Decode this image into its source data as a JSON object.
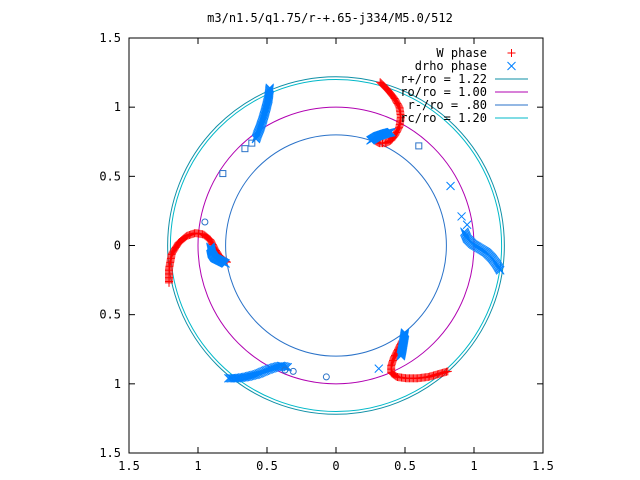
{
  "chart_data": {
    "type": "scatter",
    "title": "m3/n1.5/q1.75/r-+.65-j334/M5.0/512",
    "xlabel": "",
    "ylabel": "",
    "xlim": [
      -1.5,
      1.5
    ],
    "ylim": [
      -1.5,
      1.5
    ],
    "xtick_values": [
      -1.5,
      -1,
      -0.5,
      0,
      0.5,
      1,
      1.5
    ],
    "xtick_labels": [
      "1.5",
      "1",
      "0.5",
      "0",
      "0.5",
      "1",
      "1.5"
    ],
    "ytick_values": [
      1.5,
      1,
      0.5,
      0,
      -0.5,
      -1,
      -1.5
    ],
    "ytick_labels": [
      "1.5",
      "1",
      "0.5",
      "0",
      "0.5",
      "1",
      "1.5"
    ],
    "grid": false,
    "legend_position": "top-right",
    "series": [
      {
        "name": "W phase",
        "marker": "plus",
        "color": "#ff0000",
        "arms": [
          {
            "points": [
              [
                0.32,
                1.18
              ],
              [
                0.37,
                1.13
              ],
              [
                0.42,
                1.07
              ],
              [
                0.46,
                1.0
              ],
              [
                0.47,
                0.93
              ],
              [
                0.46,
                0.86
              ],
              [
                0.43,
                0.8
              ],
              [
                0.4,
                0.76
              ],
              [
                0.36,
                0.74
              ],
              [
                0.31,
                0.74
              ],
              [
                0.28,
                0.76
              ]
            ],
            "count": 60
          },
          {
            "points": [
              [
                -1.21,
                -0.27
              ],
              [
                -1.21,
                -0.17
              ],
              [
                -1.19,
                -0.06
              ],
              [
                -1.14,
                0.02
              ],
              [
                -1.08,
                0.07
              ],
              [
                -1.02,
                0.09
              ],
              [
                -0.96,
                0.08
              ],
              [
                -0.91,
                0.04
              ],
              [
                -0.88,
                -0.02
              ],
              [
                -0.85,
                -0.07
              ],
              [
                -0.82,
                -0.1
              ],
              [
                -0.79,
                -0.12
              ]
            ],
            "count": 80
          },
          {
            "points": [
              [
                0.81,
                -0.91
              ],
              [
                0.74,
                -0.93
              ],
              [
                0.67,
                -0.95
              ],
              [
                0.59,
                -0.96
              ],
              [
                0.51,
                -0.96
              ],
              [
                0.44,
                -0.95
              ],
              [
                0.4,
                -0.92
              ],
              [
                0.4,
                -0.87
              ],
              [
                0.42,
                -0.81
              ],
              [
                0.45,
                -0.75
              ],
              [
                0.48,
                -0.69
              ]
            ],
            "count": 70
          }
        ]
      },
      {
        "name": "drho phase",
        "marker": "cross",
        "color": "#0080ff",
        "arms": [
          {
            "points": [
              [
                -0.48,
                1.14
              ],
              [
                -0.49,
                1.06
              ],
              [
                -0.51,
                0.98
              ],
              [
                -0.53,
                0.91
              ],
              [
                -0.55,
                0.85
              ],
              [
                -0.57,
                0.8
              ],
              [
                -0.58,
                0.77
              ]
            ],
            "count": 45
          },
          {
            "points": [
              [
                0.25,
                0.76
              ],
              [
                0.3,
                0.79
              ],
              [
                0.36,
                0.81
              ],
              [
                0.4,
                0.82
              ]
            ],
            "count": 30
          },
          {
            "points": [
              [
                0.93,
                0.1
              ],
              [
                0.95,
                0.05
              ],
              [
                0.99,
                0.01
              ],
              [
                1.04,
                -0.02
              ],
              [
                1.09,
                -0.05
              ],
              [
                1.13,
                -0.09
              ],
              [
                1.16,
                -0.13
              ],
              [
                1.19,
                -0.18
              ]
            ],
            "count": 45
          },
          {
            "points": [
              [
                -0.91,
                -0.01
              ],
              [
                -0.9,
                -0.06
              ],
              [
                -0.88,
                -0.09
              ],
              [
                -0.84,
                -0.11
              ],
              [
                -0.8,
                -0.13
              ]
            ],
            "count": 30
          },
          {
            "points": [
              [
                -0.78,
                -0.96
              ],
              [
                -0.72,
                -0.96
              ],
              [
                -0.65,
                -0.95
              ],
              [
                -0.57,
                -0.93
              ],
              [
                -0.5,
                -0.9
              ],
              [
                -0.44,
                -0.88
              ],
              [
                -0.4,
                -0.87
              ],
              [
                -0.35,
                -0.88
              ]
            ],
            "count": 45
          },
          {
            "points": [
              [
                0.5,
                -0.63
              ],
              [
                0.49,
                -0.69
              ],
              [
                0.48,
                -0.75
              ],
              [
                0.47,
                -0.8
              ]
            ],
            "count": 25
          }
        ],
        "isolated": [
          [
            0.83,
            0.43
          ],
          [
            0.91,
            0.21
          ],
          [
            0.95,
            0.15
          ],
          [
            0.31,
            -0.89
          ]
        ]
      },
      {
        "name": "r+/ro = 1.22",
        "type": "circle",
        "radius": 1.22,
        "color": "#0e8fa6"
      },
      {
        "name": "ro/ro = 1.00",
        "type": "circle",
        "radius": 1.0,
        "color": "#b000b0"
      },
      {
        "name": "r-/ro = .80",
        "type": "circle",
        "radius": 0.8,
        "color": "#2a72c8"
      },
      {
        "name": "rc/ro = 1.20",
        "type": "circle",
        "radius": 1.2,
        "color": "#00b8c8"
      }
    ],
    "extra_markers": [
      {
        "marker": "square",
        "color": "#2a72c8",
        "points": [
          [
            -0.66,
            0.7
          ],
          [
            -0.61,
            0.74
          ],
          [
            -0.82,
            0.52
          ],
          [
            0.6,
            0.72
          ]
        ]
      },
      {
        "marker": "circle",
        "color": "#2a72c8",
        "points": [
          [
            -0.95,
            0.17
          ],
          [
            -0.37,
            -0.9
          ],
          [
            -0.31,
            -0.91
          ],
          [
            -0.07,
            -0.95
          ]
        ]
      }
    ]
  }
}
